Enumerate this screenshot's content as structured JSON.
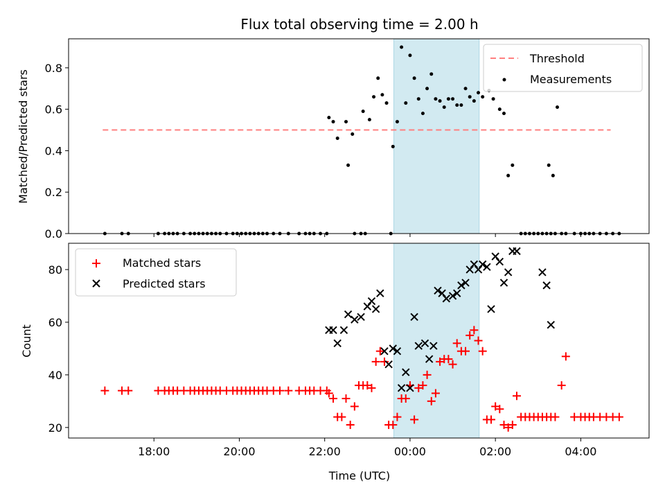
{
  "chart_data": {
    "type": "scatter",
    "title": "Flux total observing time = 2.00 h",
    "xlabel": "Time (UTC)",
    "x_tick_labels": [
      "18:00",
      "20:00",
      "22:00",
      "00:00",
      "02:00",
      "04:00"
    ],
    "x_tick_hours": [
      18,
      20,
      22,
      24,
      26,
      28
    ],
    "xlim_hours": [
      16.0,
      29.6
    ],
    "highlight_span_hours": [
      23.62,
      25.62
    ],
    "highlight_color": "#add8e6",
    "panels": [
      {
        "id": "ratio",
        "ylabel": "Matched/Predicted stars",
        "ylim": [
          0,
          0.94
        ],
        "y_ticks": [
          0.0,
          0.2,
          0.4,
          0.6,
          0.8
        ],
        "y_tick_labels": [
          "0.0",
          "0.2",
          "0.4",
          "0.6",
          "0.8"
        ],
        "legend": {
          "position": "upper right",
          "entries": [
            "Threshold",
            "Measurements"
          ]
        },
        "threshold": {
          "name": "Threshold",
          "value": 0.5,
          "x_range_hours": [
            16.8,
            28.7
          ],
          "color": "#ff7f7f"
        },
        "measurements": {
          "name": "Measurements",
          "color": "#000000",
          "x": [
            22.1,
            22.2,
            22.3,
            22.5,
            22.55,
            22.65,
            22.9,
            23.05,
            23.15,
            23.25,
            23.35,
            23.45,
            23.6,
            23.7,
            23.8,
            23.9,
            24.0,
            24.1,
            24.2,
            24.3,
            24.4,
            24.5,
            24.6,
            24.7,
            24.8,
            24.9,
            25.0,
            25.1,
            25.2,
            25.3,
            25.4,
            25.5,
            25.6,
            25.7,
            25.85,
            25.95,
            26.1,
            26.2,
            26.3,
            26.4,
            27.25,
            27.35,
            27.45
          ],
          "y": [
            0.56,
            0.54,
            0.46,
            0.54,
            0.33,
            0.48,
            0.59,
            0.55,
            0.66,
            0.75,
            0.67,
            0.63,
            0.42,
            0.54,
            0.9,
            0.63,
            0.86,
            0.75,
            0.65,
            0.58,
            0.7,
            0.77,
            0.65,
            0.64,
            0.61,
            0.65,
            0.65,
            0.62,
            0.62,
            0.7,
            0.66,
            0.64,
            0.68,
            0.66,
            0.69,
            0.65,
            0.6,
            0.58,
            0.28,
            0.33,
            0.33,
            0.28,
            0.61
          ],
          "zero_x": [
            16.85,
            17.25,
            17.4,
            18.1,
            18.25,
            18.35,
            18.45,
            18.55,
            18.7,
            18.85,
            18.95,
            19.05,
            19.15,
            19.25,
            19.35,
            19.45,
            19.55,
            19.7,
            19.85,
            19.95,
            20.05,
            20.15,
            20.25,
            20.35,
            20.45,
            20.55,
            20.65,
            20.8,
            20.95,
            21.15,
            21.4,
            21.55,
            21.65,
            21.75,
            21.9,
            22.05,
            22.7,
            22.85,
            22.95,
            23.55,
            26.6,
            26.7,
            26.8,
            26.9,
            27.0,
            27.1,
            27.2,
            27.3,
            27.4,
            27.55,
            27.65,
            27.85,
            28.0,
            28.1,
            28.2,
            28.3,
            28.45,
            28.6,
            28.75,
            28.9
          ]
        }
      },
      {
        "id": "count",
        "ylabel": "Count",
        "ylim": [
          16,
          90
        ],
        "y_ticks": [
          20,
          40,
          60,
          80
        ],
        "y_tick_labels": [
          "20",
          "40",
          "60",
          "80"
        ],
        "legend": {
          "position": "upper left",
          "entries": [
            "Matched stars",
            "Predicted stars"
          ]
        },
        "matched": {
          "name": "Matched stars",
          "color": "#ff0000",
          "x": [
            16.85,
            17.25,
            17.4,
            18.1,
            18.25,
            18.35,
            18.45,
            18.55,
            18.7,
            18.85,
            18.95,
            19.05,
            19.15,
            19.25,
            19.35,
            19.45,
            19.55,
            19.7,
            19.85,
            19.95,
            20.05,
            20.15,
            20.25,
            20.35,
            20.45,
            20.55,
            20.65,
            20.8,
            20.95,
            21.15,
            21.4,
            21.55,
            21.65,
            21.75,
            21.9,
            22.05,
            22.1,
            22.2,
            22.3,
            22.4,
            22.5,
            22.6,
            22.7,
            22.8,
            22.9,
            23.0,
            23.1,
            23.2,
            23.3,
            23.4,
            23.5,
            23.6,
            23.7,
            23.8,
            23.9,
            24.0,
            24.1,
            24.2,
            24.3,
            24.4,
            24.5,
            24.6,
            24.7,
            24.8,
            24.9,
            25.0,
            25.1,
            25.2,
            25.3,
            25.4,
            25.5,
            25.6,
            25.7,
            25.8,
            25.9,
            26.0,
            26.1,
            26.2,
            26.3,
            26.4,
            26.5,
            26.6,
            26.7,
            26.8,
            26.9,
            27.0,
            27.1,
            27.2,
            27.3,
            27.4,
            27.55,
            27.65,
            27.85,
            28.0,
            28.1,
            28.2,
            28.3,
            28.45,
            28.6,
            28.75,
            28.9
          ],
          "y": [
            34,
            34,
            34,
            34,
            34,
            34,
            34,
            34,
            34,
            34,
            34,
            34,
            34,
            34,
            34,
            34,
            34,
            34,
            34,
            34,
            34,
            34,
            34,
            34,
            34,
            34,
            34,
            34,
            34,
            34,
            34,
            34,
            34,
            34,
            34,
            34,
            33,
            31,
            24,
            24,
            31,
            21,
            28,
            36,
            36,
            36,
            35,
            45,
            49,
            45,
            21,
            21,
            24,
            31,
            31,
            36,
            23,
            35,
            36,
            40,
            30,
            33,
            45,
            46,
            46,
            44,
            52,
            49,
            49,
            55,
            57,
            53,
            49,
            23,
            23,
            28,
            27,
            21,
            20,
            21,
            32,
            24,
            24,
            24,
            24,
            24,
            24,
            24,
            24,
            24,
            36,
            47,
            24,
            24,
            24,
            24,
            24,
            24,
            24,
            24,
            24
          ]
        },
        "predicted": {
          "name": "Predicted stars",
          "color": "#000000",
          "x": [
            22.1,
            22.2,
            22.3,
            22.45,
            22.55,
            22.7,
            22.85,
            23.0,
            23.1,
            23.2,
            23.3,
            23.4,
            23.5,
            23.6,
            23.7,
            23.8,
            23.9,
            24.0,
            24.1,
            24.2,
            24.35,
            24.45,
            24.55,
            24.65,
            24.75,
            24.85,
            25.0,
            25.1,
            25.2,
            25.3,
            25.4,
            25.5,
            25.6,
            25.7,
            25.8,
            25.9,
            26.0,
            26.1,
            26.2,
            26.3,
            26.4,
            26.5,
            27.1,
            27.2,
            27.3
          ],
          "y": [
            57,
            57,
            52,
            57,
            63,
            61,
            62,
            66,
            68,
            65,
            71,
            49,
            44,
            50,
            49,
            35,
            41,
            35,
            62,
            51,
            52,
            46,
            51,
            72,
            71,
            69,
            70,
            71,
            74,
            75,
            80,
            82,
            80,
            82,
            81,
            65,
            85,
            83,
            75,
            79,
            87,
            87,
            79,
            74,
            59
          ]
        }
      }
    ]
  }
}
